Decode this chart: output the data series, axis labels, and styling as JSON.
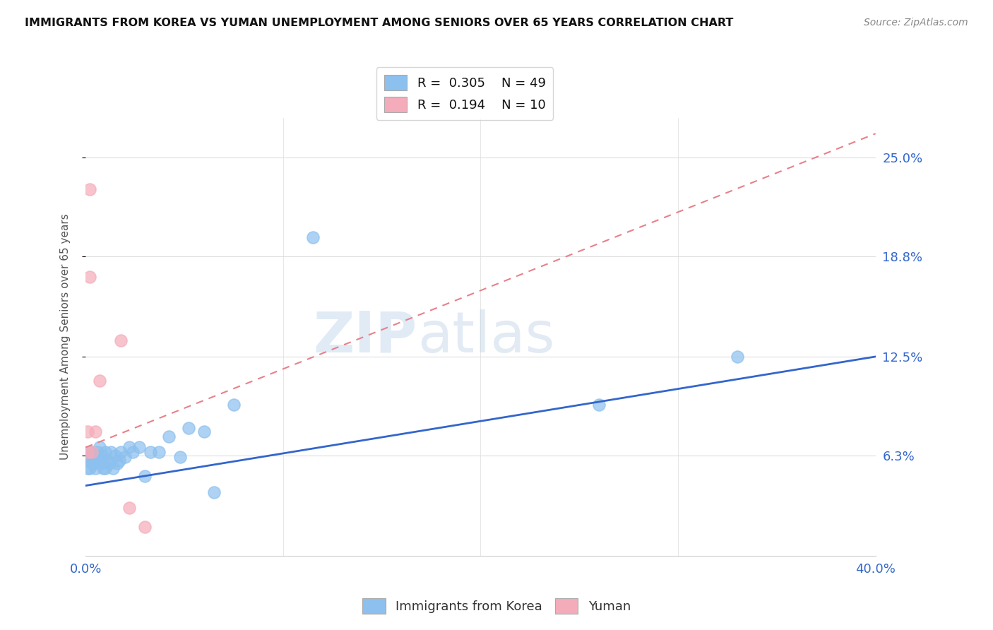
{
  "title": "IMMIGRANTS FROM KOREA VS YUMAN UNEMPLOYMENT AMONG SENIORS OVER 65 YEARS CORRELATION CHART",
  "source": "Source: ZipAtlas.com",
  "ylabel": "Unemployment Among Seniors over 65 years",
  "yticks": [
    "25.0%",
    "18.8%",
    "12.5%",
    "6.3%"
  ],
  "ytick_vals": [
    0.25,
    0.188,
    0.125,
    0.063
  ],
  "xtick_left": "0.0%",
  "xtick_right": "40.0%",
  "xlim": [
    0.0,
    0.4
  ],
  "ylim": [
    0.0,
    0.275
  ],
  "legend_labels": [
    "Immigrants from Korea",
    "Yuman"
  ],
  "R_korea": 0.305,
  "N_korea": 49,
  "R_yuman": 0.194,
  "N_yuman": 10,
  "korea_color": "#8CC0EE",
  "yuman_color": "#F4ACBA",
  "korea_line_color": "#3366CC",
  "yuman_line_color": "#E8808A",
  "background_color": "#FFFFFF",
  "watermark_zip": "ZIP",
  "watermark_atlas": "atlas",
  "korea_x": [
    0.001,
    0.001,
    0.002,
    0.002,
    0.002,
    0.003,
    0.003,
    0.003,
    0.004,
    0.004,
    0.004,
    0.005,
    0.005,
    0.005,
    0.006,
    0.006,
    0.006,
    0.007,
    0.007,
    0.008,
    0.008,
    0.009,
    0.009,
    0.01,
    0.01,
    0.011,
    0.012,
    0.013,
    0.014,
    0.015,
    0.016,
    0.017,
    0.018,
    0.02,
    0.022,
    0.024,
    0.027,
    0.03,
    0.033,
    0.037,
    0.042,
    0.048,
    0.052,
    0.06,
    0.065,
    0.075,
    0.26,
    0.33,
    0.115
  ],
  "korea_y": [
    0.055,
    0.06,
    0.055,
    0.062,
    0.065,
    0.058,
    0.06,
    0.065,
    0.06,
    0.063,
    0.058,
    0.055,
    0.06,
    0.063,
    0.06,
    0.065,
    0.06,
    0.068,
    0.06,
    0.058,
    0.063,
    0.055,
    0.06,
    0.055,
    0.065,
    0.06,
    0.058,
    0.065,
    0.055,
    0.063,
    0.058,
    0.06,
    0.065,
    0.062,
    0.068,
    0.065,
    0.068,
    0.05,
    0.065,
    0.065,
    0.075,
    0.062,
    0.08,
    0.078,
    0.04,
    0.095,
    0.095,
    0.125,
    0.2
  ],
  "yuman_x": [
    0.001,
    0.001,
    0.002,
    0.002,
    0.003,
    0.005,
    0.007,
    0.018,
    0.022,
    0.03
  ],
  "yuman_y": [
    0.065,
    0.078,
    0.23,
    0.175,
    0.065,
    0.078,
    0.11,
    0.135,
    0.03,
    0.018
  ],
  "korea_line_x0": 0.0,
  "korea_line_y0": 0.044,
  "korea_line_x1": 0.4,
  "korea_line_y1": 0.125,
  "yuman_line_x0": 0.0,
  "yuman_line_y0": 0.068,
  "yuman_line_x1": 0.4,
  "yuman_line_y1": 0.265
}
